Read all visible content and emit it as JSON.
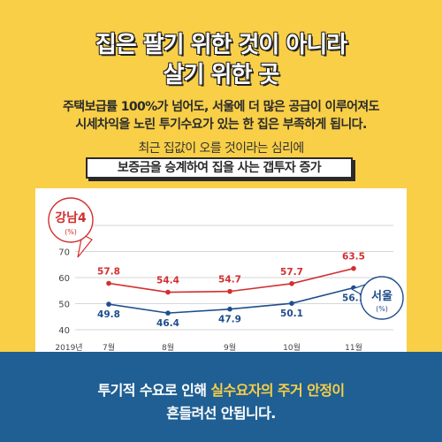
{
  "headline": {
    "line1": "집은 팔기 위한 것이 아니라",
    "line2": "살기 위한 곳"
  },
  "body": {
    "line1": "주택보급률 100%가 넘어도, 서울에 더 많은 공급이 이루어져도",
    "line2": "시세차익을 노린 투기수요가 있는 한 집은 부족하게 됩니다."
  },
  "subtitle": "최근 집값이 오를 것이라는 심리에",
  "boxed_text": "보증금을 승계하여 집을 사는 갭투자 증가",
  "footer": {
    "line1_a": "투기적 수요로 인해 ",
    "line1_highlight": "실수요자의 주거 안정이",
    "line2": "흔들려선 안됩니다."
  },
  "colors": {
    "background_top": "#f8cf47",
    "background_bottom": "#1f5f93",
    "gangnam": "#d32f2f",
    "seoul": "#1f4e8c",
    "highlight": "#f8cf47"
  },
  "chart_data": {
    "type": "line",
    "x_prefix_label": "2019년",
    "categories": [
      "7월",
      "8월",
      "9월",
      "10월",
      "11월"
    ],
    "ylim": [
      40,
      80
    ],
    "yticks": [
      40,
      50,
      60,
      70,
      80
    ],
    "grid": true,
    "series": [
      {
        "name": "강남4",
        "unit": "(%)",
        "color": "#d32f2f",
        "values": [
          57.8,
          54.4,
          54.7,
          57.7,
          63.5
        ]
      },
      {
        "name": "서울",
        "unit": "(%)",
        "color": "#1f4e8c",
        "values": [
          49.8,
          46.4,
          47.9,
          50.1,
          56.1
        ]
      }
    ]
  }
}
